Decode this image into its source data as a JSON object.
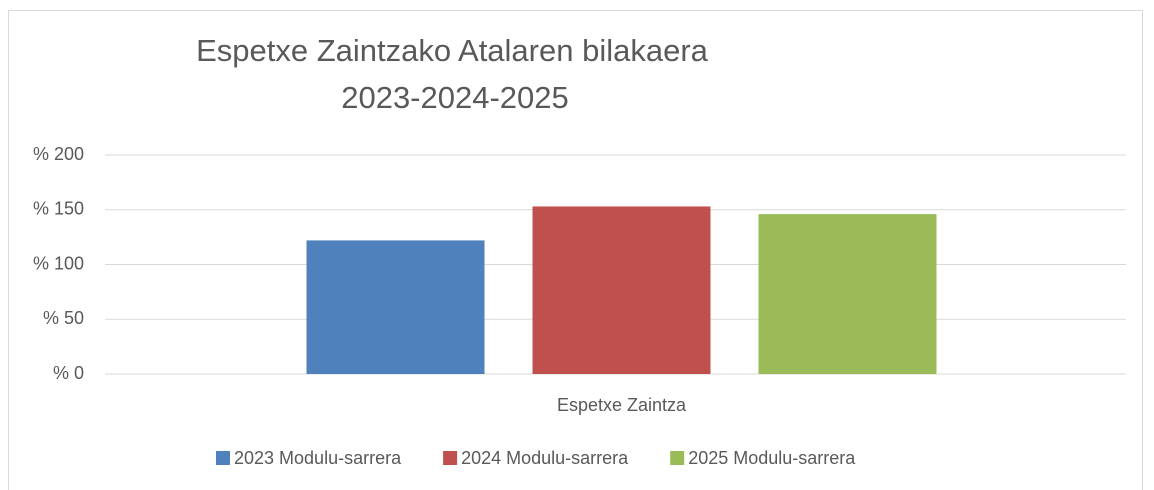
{
  "chart_data": {
    "type": "bar",
    "title": [
      "Espetxe Zaintzako Atalaren bilakaera",
      "2023-2024-2025"
    ],
    "categories": [
      "Espetxe Zaintza"
    ],
    "series": [
      {
        "name": "2023 Modulu-sarrera",
        "color": "#4f81bd",
        "values": [
          122
        ]
      },
      {
        "name": "2024 Modulu-sarrera",
        "color": "#c0504d",
        "values": [
          153
        ]
      },
      {
        "name": "2025 Modulu-sarrera",
        "color": "#9bbb59",
        "values": [
          146
        ]
      }
    ],
    "ylim": [
      0,
      200
    ],
    "yticks": [
      {
        "value": 0,
        "label": "% 0"
      },
      {
        "value": 50,
        "label": "% 50"
      },
      {
        "value": 100,
        "label": "% 100"
      },
      {
        "value": 150,
        "label": "% 150"
      },
      {
        "value": 200,
        "label": "% 200"
      }
    ],
    "grid": true,
    "legend": "bottom"
  }
}
